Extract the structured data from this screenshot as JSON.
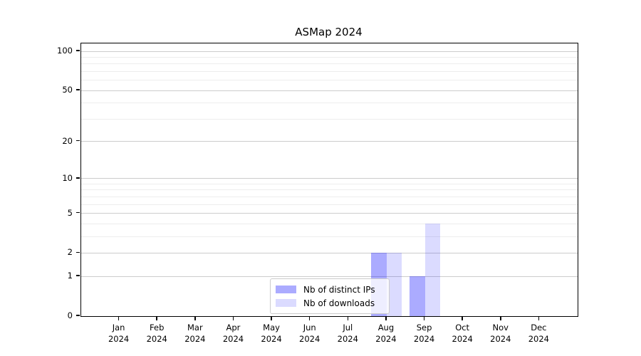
{
  "title": "ASMap 2024",
  "colors": {
    "bar_distinct_ips": "rgba(0,0,255,0.33)",
    "bar_downloads": "rgba(0,0,255,0.14)",
    "grid_major": "#cccccc",
    "grid_minor": "#ededed",
    "axis": "#000000",
    "legend_border": "#cccccc",
    "legend_background": "rgba(255,255,255,0.8)"
  },
  "chart_data": {
    "type": "bar",
    "title": "ASMap 2024",
    "categories": [
      "Jan",
      "Feb",
      "Mar",
      "Apr",
      "May",
      "Jun",
      "Jul",
      "Aug",
      "Sep",
      "Oct",
      "Nov",
      "Dec"
    ],
    "category_year": "2024",
    "series": [
      {
        "name": "Nb of distinct IPs",
        "key": "distinct_ips",
        "values": [
          0,
          0,
          0,
          0,
          0,
          0,
          0,
          2,
          1,
          0,
          0,
          0
        ]
      },
      {
        "name": "Nb of downloads",
        "key": "downloads",
        "values": [
          0,
          0,
          0,
          0,
          0,
          0,
          0,
          2,
          4,
          0,
          0,
          0
        ]
      }
    ],
    "xlabel": "",
    "ylabel": "",
    "yscale": "log1p",
    "ylim": [
      0,
      115
    ],
    "yticks_major": [
      0,
      1,
      2,
      5,
      10,
      20,
      50,
      100
    ],
    "yticks_minor": [
      3,
      4,
      6,
      7,
      8,
      9,
      30,
      40,
      60,
      70,
      80,
      90
    ],
    "grid": "horizontal",
    "legend_position": "lower-center"
  }
}
